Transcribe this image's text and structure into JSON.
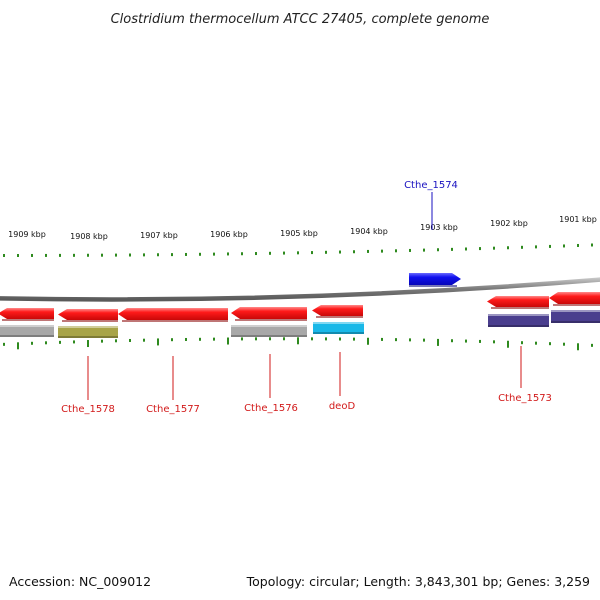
{
  "title": "Clostridium thermocellum ATCC 27405, complete genome",
  "footer": {
    "accession": "Accession: NC_009012",
    "summary": "Topology: circular; Length: 3,843,301 bp; Genes: 3,259"
  },
  "colors": {
    "forward_gene": "#0a12e6",
    "reverse_gene": "#e8141b",
    "label_forward": "#1a12c0",
    "label_reverse": "#d21a1a",
    "backbone": "#8a8a8a",
    "tick": "#2e8a1e",
    "cog_gray": "#a8a8a8",
    "cog_olive": "#a8a448",
    "cog_cyan": "#19b8e8",
    "cog_purple": "#4a3e8e"
  },
  "kbp_ticks": [
    {
      "label": "1909 kbp"
    },
    {
      "label": "1908 kbp"
    },
    {
      "label": "1907 kbp"
    },
    {
      "label": "1906 kbp"
    },
    {
      "label": "1905 kbp"
    },
    {
      "label": "1904 kbp"
    },
    {
      "label": "1903 kbp"
    },
    {
      "label": "1902 kbp"
    },
    {
      "label": "1901 kbp"
    }
  ],
  "genes": [
    {
      "name": "",
      "strand": "reverse",
      "cog_color": "cog_gray"
    },
    {
      "name": "Cthe_1578",
      "strand": "reverse",
      "cog_color": "cog_olive"
    },
    {
      "name": "Cthe_1577",
      "strand": "reverse",
      "cog_color": ""
    },
    {
      "name": "Cthe_1576",
      "strand": "reverse",
      "cog_color": "cog_gray"
    },
    {
      "name": "deoD",
      "strand": "reverse",
      "cog_color": "cog_cyan"
    },
    {
      "name": "Cthe_1574",
      "strand": "forward",
      "cog_color": ""
    },
    {
      "name": "Cthe_1573",
      "strand": "reverse",
      "cog_color": "cog_purple"
    },
    {
      "name": "",
      "strand": "reverse",
      "cog_color": "cog_purple"
    }
  ]
}
